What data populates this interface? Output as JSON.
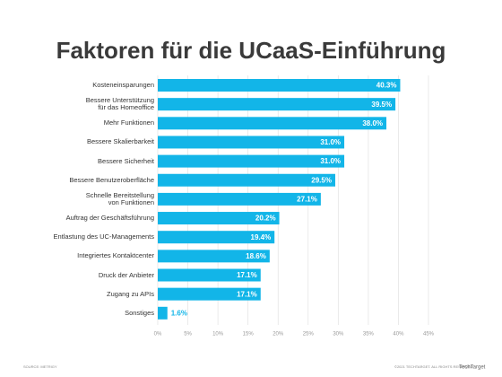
{
  "chart_data": {
    "type": "bar",
    "orientation": "horizontal",
    "title": "Faktoren für die UCaaS-Einführung",
    "categories": [
      "Kosteneinsparungen",
      "Bessere Unterstützung\nfür das Homeoffice",
      "Mehr Funktionen",
      "Bessere Skalierbarkeit",
      "Bessere Sicherheit",
      "Bessere Benutzeroberfläche",
      "Schnelle Bereitstellung\nvon Funktionen",
      "Auftrag der Geschäftsführung",
      "Entlastung des UC-Managements",
      "Integriertes Kontaktcenter",
      "Druck der Anbieter",
      "Zugang zu APIs",
      "Sonstiges"
    ],
    "values": [
      40.3,
      39.5,
      38.0,
      31.0,
      31.0,
      29.5,
      27.1,
      20.2,
      19.4,
      18.6,
      17.1,
      17.1,
      1.6
    ],
    "value_labels": [
      "40.3%",
      "39.5%",
      "38.0%",
      "31.0%",
      "31.0%",
      "29.5%",
      "27.1%",
      "20.2%",
      "19.4%",
      "18.6%",
      "17.1%",
      "17.1%",
      "1.6%"
    ],
    "color": "#12b5e8",
    "xlim": [
      0,
      45
    ],
    "xticks": [
      {
        "value": 0,
        "label": "0%"
      },
      {
        "value": 5,
        "label": "5%"
      },
      {
        "value": 10,
        "label": "10%"
      },
      {
        "value": 15,
        "label": "15%"
      },
      {
        "value": 20,
        "label": "20%"
      },
      {
        "value": 25,
        "label": "25%"
      },
      {
        "value": 30,
        "label": "30%"
      },
      {
        "value": 35,
        "label": "35%"
      },
      {
        "value": 40,
        "label": "40%"
      },
      {
        "value": 45,
        "label": "45%"
      }
    ],
    "grid": true,
    "source": "SOURCE: METRIGY",
    "copyright": "©2021 TECHTARGET. ALL RIGHTS RESERVED",
    "logo": "TechTarget"
  }
}
